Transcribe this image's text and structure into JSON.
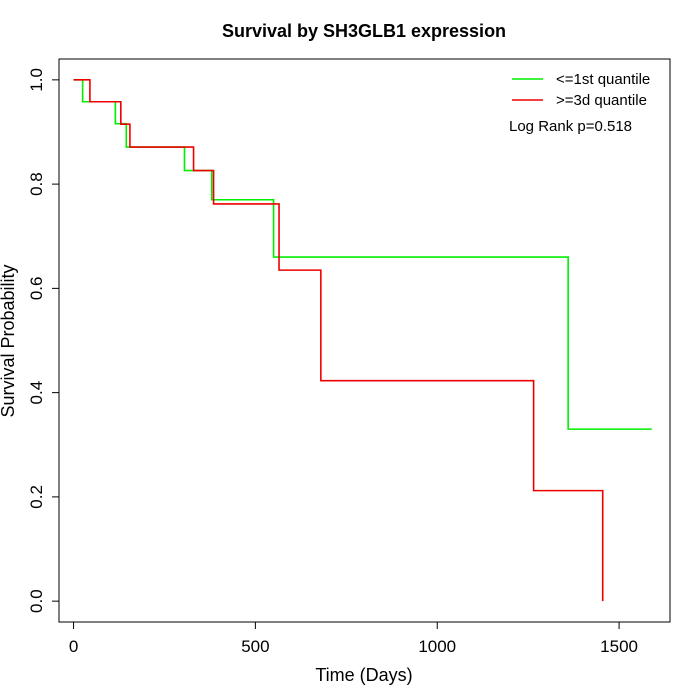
{
  "chart_data": {
    "type": "line",
    "title": "Survival by SH3GLB1 expression",
    "xlabel": "Time (Days)",
    "ylabel": "Survival Probability",
    "xlim": [
      -40,
      1640
    ],
    "ylim": [
      -0.04,
      1.04
    ],
    "xticks": [
      0,
      500,
      1000,
      1500
    ],
    "yticks": [
      0.0,
      0.2,
      0.4,
      0.6,
      0.8,
      1.0
    ],
    "xtick_labels": [
      "0",
      "500",
      "1000",
      "1500"
    ],
    "ytick_labels": [
      "0.0",
      "0.2",
      "0.4",
      "0.6",
      "0.8",
      "1.0"
    ],
    "legend_position": "top-right",
    "annotation": "Log Rank p=0.518",
    "series": [
      {
        "name": "<=1st quantile",
        "color": "#00ee00",
        "step": true,
        "x": [
          0,
          25,
          115,
          145,
          305,
          380,
          550,
          1360,
          1590
        ],
        "y": [
          1.0,
          0.958,
          0.916,
          0.871,
          0.826,
          0.77,
          0.66,
          0.33,
          0.33
        ]
      },
      {
        "name": ">=3d quantile",
        "color": "#ee0000",
        "step": true,
        "x": [
          0,
          45,
          130,
          155,
          330,
          385,
          565,
          680,
          1265,
          1455,
          1455
        ],
        "y": [
          1.0,
          0.958,
          0.915,
          0.871,
          0.826,
          0.762,
          0.635,
          0.423,
          0.212,
          0.212,
          0.0
        ]
      }
    ]
  }
}
